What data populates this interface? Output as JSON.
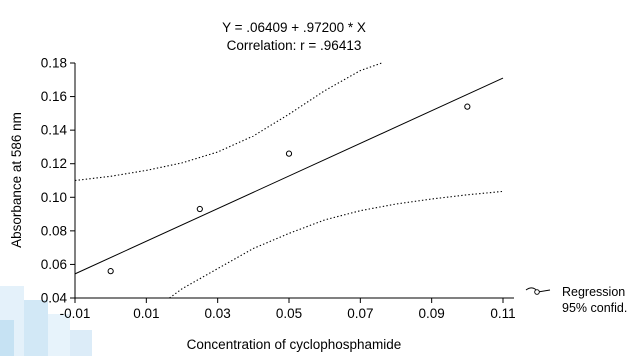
{
  "chart_data": {
    "type": "scatter",
    "title": "Y = .06409 + .97200 * X",
    "subtitle": "Correlation: r = .96413",
    "xlabel": "Concentration of cyclophosphamide",
    "ylabel": "Absorbance at 586 nm",
    "xlim": [
      -0.01,
      0.11
    ],
    "ylim": [
      0.04,
      0.18
    ],
    "x_ticks": [
      "-0.01",
      "0.01",
      "0.03",
      "0.05",
      "0.07",
      "0.09",
      "0.11"
    ],
    "y_ticks": [
      "0.04",
      "0.06",
      "0.08",
      "0.10",
      "0.12",
      "0.14",
      "0.16",
      "0.18"
    ],
    "grid": false,
    "legend_placement": "bottom-right",
    "series": [
      {
        "name": "Regression",
        "kind": "points",
        "x": [
          0.0,
          0.025,
          0.05,
          0.1
        ],
        "y": [
          0.056,
          0.093,
          0.126,
          0.154
        ]
      },
      {
        "kind": "regression-line",
        "intercept": 0.06409,
        "slope": 0.972
      },
      {
        "name": "95% confid.",
        "kind": "confidence-band",
        "upper": {
          "x": [
            -0.01,
            0.0,
            0.01,
            0.02,
            0.03,
            0.04,
            0.05,
            0.06,
            0.07,
            0.076
          ],
          "y": [
            0.11,
            0.1125,
            0.116,
            0.1205,
            0.127,
            0.1365,
            0.1495,
            0.1635,
            0.1755,
            0.18
          ]
        },
        "lower": {
          "x": [
            0.0165,
            0.02,
            0.03,
            0.04,
            0.05,
            0.06,
            0.07,
            0.08,
            0.09,
            0.1,
            0.11
          ],
          "y": [
            0.04,
            0.0455,
            0.0575,
            0.0695,
            0.0785,
            0.0865,
            0.092,
            0.096,
            0.099,
            0.1015,
            0.1035
          ]
        }
      }
    ],
    "colors": {
      "axis": "#000000",
      "data": "#000000",
      "watermark": "#cfe6f5"
    }
  },
  "legend": {
    "items": [
      {
        "label": "Regression"
      },
      {
        "label": "95% confid."
      }
    ]
  }
}
